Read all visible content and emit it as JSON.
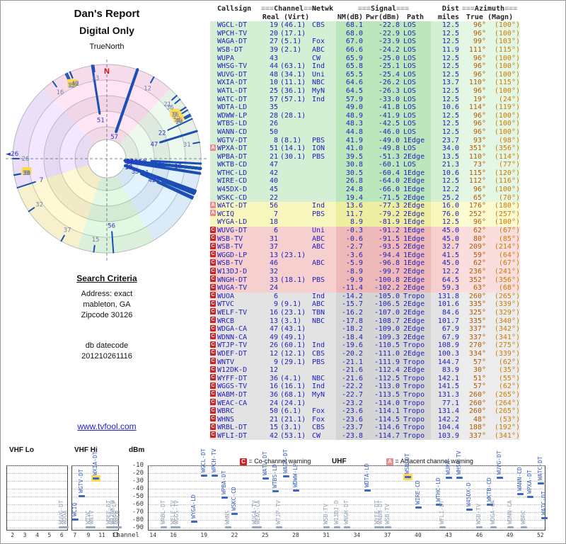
{
  "page": {
    "title1": "Dan's Report",
    "title2": "Digital Only",
    "radar_top_label": "TrueNorth",
    "radar_north": "N",
    "radar_west_label": "26",
    "search_heading": "Search Criteria",
    "search_lines": [
      "Address: exact",
      "mableton, GA",
      "Zipcode 30126"
    ],
    "db_label": "db datecode",
    "db_value": "201210261116",
    "site_link": "www.tvfool.com"
  },
  "table_header": {
    "callsign": "Callsign",
    "channel_group": "Channel",
    "signal_group": "Signal",
    "dist_group": "Dist",
    "azimuth_group": "Azimuth",
    "deco": "≡≡≡",
    "real_virt": "Real (Virt)",
    "netwk": "Netwk",
    "nm": "NM(dB)",
    "pwr": "Pwr(dBm)",
    "path": "Path",
    "miles": "miles",
    "true_magn": "True (Magn)"
  },
  "legend": {
    "co_symbol": "C",
    "co_text": "= Co-channel warning",
    "adj_symbol": "A",
    "adj_text": "= Adjacent channel warning"
  },
  "chart_axes": {
    "dbm_label": "dBm",
    "dbm_ticks": [
      -10,
      -20,
      -30,
      -40,
      -50,
      -60,
      -70,
      -80,
      -90
    ],
    "channel_label": "Channel",
    "panels": [
      {
        "name": "VHF Lo",
        "min": 2,
        "max": 6,
        "ticks": [
          2,
          3,
          4,
          5,
          6
        ]
      },
      {
        "name": "VHF Hi",
        "min": 7,
        "max": 13,
        "ticks": [
          7,
          9,
          11,
          13
        ]
      },
      {
        "name": "UHF",
        "min": 14,
        "max": 52,
        "ticks": [
          14,
          16,
          19,
          22,
          25,
          28,
          31,
          34,
          37,
          40,
          43,
          46,
          49,
          52
        ]
      }
    ]
  },
  "radar": {
    "highlight_channels": [
      6,
      9,
      13
    ],
    "sectors": [
      {
        "from": 318,
        "to": 42,
        "color": "#ffaade"
      },
      {
        "from": 252,
        "to": 318,
        "color": "#d8b4ff"
      },
      {
        "from": 198,
        "to": 252,
        "color": "#ffe97a"
      },
      {
        "from": 150,
        "to": 198,
        "color": "#a6e8a6"
      },
      {
        "from": 96,
        "to": 150,
        "color": "#a6d8ff"
      },
      {
        "from": 42,
        "to": 96,
        "color": "#c6ecc6"
      }
    ]
  },
  "chart_highlight": [
    "WXIA-DT",
    "WSB-DT"
  ],
  "chart_data": {
    "type": "table",
    "description": "TV reception report: stations with real/virtual channel, network, noise margin NM(dB), power Pwr(dBm), propagation path, distance (miles) and azimuth true/magnetic. Same stations are plotted on the azimuth radar (top-left) and the signal strength vs channel plot (bottom). band: g=green strong, y=yellow, p=pink/red, x=gray weak. warn: C=co-channel, A=adjacent channel.",
    "columns": [
      "cs",
      "re",
      "vi",
      "net",
      "nm",
      "pw",
      "pa",
      "mi",
      "az",
      "mag",
      "band",
      "warn"
    ],
    "stations": [
      {
        "cs": "WGCL-DT",
        "re": 19,
        "vi": "(46.1)",
        "net": "CBS",
        "nm": 68.1,
        "pw": -22.8,
        "pa": "LOS",
        "mi": 12.5,
        "az": 96,
        "mag": 100,
        "band": "g",
        "warn": ""
      },
      {
        "cs": "WPCH-TV",
        "re": 20,
        "vi": "(17.1)",
        "net": "",
        "nm": 68.0,
        "pw": -22.9,
        "pa": "LOS",
        "mi": 12.5,
        "az": 96,
        "mag": 100,
        "band": "g",
        "warn": ""
      },
      {
        "cs": "WAGA-DT",
        "re": 27,
        "vi": "(5.1)",
        "net": "Fox",
        "nm": 67.0,
        "pw": -23.9,
        "pa": "LOS",
        "mi": 12.5,
        "az": 99,
        "mag": 103,
        "band": "g",
        "warn": ""
      },
      {
        "cs": "WSB-DT",
        "re": 39,
        "vi": "(2.1)",
        "net": "ABC",
        "nm": 66.6,
        "pw": -24.2,
        "pa": "LOS",
        "mi": 11.9,
        "az": 111,
        "mag": 115,
        "band": "g",
        "warn": ""
      },
      {
        "cs": "WUPA",
        "re": 43,
        "vi": "",
        "net": "CW",
        "nm": 65.9,
        "pw": -25.0,
        "pa": "LOS",
        "mi": 12.5,
        "az": 96,
        "mag": 100,
        "band": "g",
        "warn": ""
      },
      {
        "cs": "WHSG-TV",
        "re": 44,
        "vi": "(63.1)",
        "net": "Ind",
        "nm": 65.8,
        "pw": -25.1,
        "pa": "LOS",
        "mi": 12.5,
        "az": 96,
        "mag": 100,
        "band": "g",
        "warn": ""
      },
      {
        "cs": "WUVG-DT",
        "re": 48,
        "vi": "(34.1)",
        "net": "Uni",
        "nm": 65.5,
        "pw": -25.4,
        "pa": "LOS",
        "mi": 12.5,
        "az": 96,
        "mag": 100,
        "band": "g",
        "warn": ""
      },
      {
        "cs": "WXIA-DT",
        "re": 10,
        "vi": "(11.1)",
        "net": "NBC",
        "nm": 64.6,
        "pw": -26.2,
        "pa": "LOS",
        "mi": 13.7,
        "az": 110,
        "mag": 115,
        "band": "g",
        "warn": ""
      },
      {
        "cs": "WATL-DT",
        "re": 25,
        "vi": "(36.1)",
        "net": "MyN",
        "nm": 64.5,
        "pw": -26.3,
        "pa": "LOS",
        "mi": 12.5,
        "az": 96,
        "mag": 100,
        "band": "g",
        "warn": ""
      },
      {
        "cs": "WATC-DT",
        "re": 57,
        "vi": "(57.1)",
        "net": "Ind",
        "nm": 57.9,
        "pw": -33.0,
        "pa": "LOS",
        "mi": 12.5,
        "az": 19,
        "mag": 24,
        "band": "g",
        "warn": ""
      },
      {
        "cs": "WDTA-LD",
        "re": 35,
        "vi": "",
        "net": "",
        "nm": 49.0,
        "pw": -41.8,
        "pa": "LOS",
        "mi": 10.6,
        "az": 114,
        "mag": 119,
        "band": "g",
        "warn": ""
      },
      {
        "cs": "WDWW-LP",
        "re": 28,
        "vi": "(28.1)",
        "net": "",
        "nm": 48.9,
        "pw": -41.9,
        "pa": "LOS",
        "mi": 12.5,
        "az": 96,
        "mag": 100,
        "band": "g",
        "warn": ""
      },
      {
        "cs": "WTBS-LD",
        "re": 26,
        "vi": "",
        "net": "",
        "nm": 48.3,
        "pw": -42.5,
        "pa": "LOS",
        "mi": 12.5,
        "az": 96,
        "mag": 100,
        "band": "g",
        "warn": ""
      },
      {
        "cs": "WANN-CD",
        "re": 50,
        "vi": "",
        "net": "",
        "nm": 44.8,
        "pw": -46.0,
        "pa": "LOS",
        "mi": 12.5,
        "az": 96,
        "mag": 100,
        "band": "g",
        "warn": ""
      },
      {
        "cs": "WGTV-DT",
        "re": 8,
        "vi": "(8.1)",
        "net": "PBS",
        "nm": 41.9,
        "pw": -49.0,
        "pa": "1Edge",
        "mi": 23.7,
        "az": 93,
        "mag": 98,
        "band": "g",
        "warn": ""
      },
      {
        "cs": "WPXA-DT",
        "re": 51,
        "vi": "(14.1)",
        "net": "ION",
        "nm": 41.0,
        "pw": -49.8,
        "pa": "LOS",
        "mi": 34.0,
        "az": 351,
        "mag": 356,
        "band": "g",
        "warn": "A"
      },
      {
        "cs": "WPBA-DT",
        "re": 21,
        "vi": "(30.1)",
        "net": "PBS",
        "nm": 39.5,
        "pw": -51.3,
        "pa": "2Edge",
        "mi": 13.5,
        "az": 110,
        "mag": 114,
        "band": "g",
        "warn": ""
      },
      {
        "cs": "WKTB-CD",
        "re": 47,
        "vi": "",
        "net": "",
        "nm": 30.8,
        "pw": -60.1,
        "pa": "LOS",
        "mi": 21.3,
        "az": 73,
        "mag": 77,
        "band": "g",
        "warn": ""
      },
      {
        "cs": "WTHC-LD",
        "re": 42,
        "vi": "",
        "net": "",
        "nm": 30.5,
        "pw": -60.4,
        "pa": "1Edge",
        "mi": 10.6,
        "az": 115,
        "mag": 120,
        "band": "g",
        "warn": ""
      },
      {
        "cs": "WIRE-CD",
        "re": 40,
        "vi": "",
        "net": "",
        "nm": 26.8,
        "pw": -64.0,
        "pa": "2Edge",
        "mi": 12.5,
        "az": 112,
        "mag": 116,
        "band": "g",
        "warn": ""
      },
      {
        "cs": "W45DX-D",
        "re": 45,
        "vi": "",
        "net": "",
        "nm": 24.8,
        "pw": -66.0,
        "pa": "1Edge",
        "mi": 12.2,
        "az": 96,
        "mag": 100,
        "band": "g",
        "warn": ""
      },
      {
        "cs": "WSKC-CD",
        "re": 22,
        "vi": "",
        "net": "",
        "nm": 19.4,
        "pw": -71.5,
        "pa": "2Edge",
        "mi": 25.2,
        "az": 65,
        "mag": 70,
        "band": "g",
        "warn": ""
      },
      {
        "cs": "WATC-DT",
        "re": 56,
        "vi": "",
        "net": "Ind",
        "nm": 13.6,
        "pw": -77.3,
        "pa": "2Edge",
        "mi": 16.0,
        "az": 176,
        "mag": 180,
        "band": "y",
        "warn": "A"
      },
      {
        "cs": "WCIQ",
        "re": 7,
        "vi": "",
        "net": "PBS",
        "nm": 11.7,
        "pw": -79.2,
        "pa": "2Edge",
        "mi": 76.0,
        "az": 252,
        "mag": 257,
        "band": "y",
        "warn": "A"
      },
      {
        "cs": "WYGA-LD",
        "re": 18,
        "vi": "",
        "net": "",
        "nm": 8.9,
        "pw": -81.9,
        "pa": "1Edge",
        "mi": 12.5,
        "az": 96,
        "mag": 100,
        "band": "y",
        "warn": ""
      },
      {
        "cs": "WUVG-DT",
        "re": 6,
        "vi": "",
        "net": "Uni",
        "nm": -0.3,
        "pw": -91.2,
        "pa": "1Edge",
        "mi": 45.0,
        "az": 62,
        "mag": 67,
        "band": "p",
        "warn": "C"
      },
      {
        "cs": "WSB-TV",
        "re": 31,
        "vi": "",
        "net": "ABC",
        "nm": -0.6,
        "pw": -91.5,
        "pa": "1Edge",
        "mi": 45.0,
        "az": 80,
        "mag": 85,
        "band": "p",
        "warn": "C"
      },
      {
        "cs": "WSB-TV",
        "re": 37,
        "vi": "",
        "net": "ABC",
        "nm": -2.7,
        "pw": -93.5,
        "pa": "2Edge",
        "mi": 32.7,
        "az": 209,
        "mag": 214,
        "band": "p",
        "warn": "C"
      },
      {
        "cs": "WGGD-LP",
        "re": 13,
        "vi": "(23.1)",
        "net": "",
        "nm": -3.6,
        "pw": -94.4,
        "pa": "1Edge",
        "mi": 41.5,
        "az": 59,
        "mag": 64,
        "band": "p",
        "warn": "C"
      },
      {
        "cs": "WSB-TV",
        "re": 46,
        "vi": "",
        "net": "ABC",
        "nm": -5.9,
        "pw": -96.8,
        "pa": "1Edge",
        "mi": 45.0,
        "az": 62,
        "mag": 67,
        "band": "p",
        "warn": "C"
      },
      {
        "cs": "W13DJ-D",
        "re": 32,
        "vi": "",
        "net": "",
        "nm": -8.9,
        "pw": -99.7,
        "pa": "2Edge",
        "mi": 12.2,
        "az": 236,
        "mag": 241,
        "band": "p",
        "warn": "C"
      },
      {
        "cs": "WNGH-DT",
        "re": 33,
        "vi": "(18.1)",
        "net": "PBS",
        "nm": -9.9,
        "pw": -100.8,
        "pa": "2Edge",
        "mi": 64.5,
        "az": 352,
        "mag": 356,
        "band": "p",
        "warn": "C"
      },
      {
        "cs": "WUGA-TV",
        "re": 24,
        "vi": "",
        "net": "",
        "nm": -11.4,
        "pw": -102.2,
        "pa": "2Edge",
        "mi": 59.3,
        "az": 63,
        "mag": 68,
        "band": "p",
        "warn": "C"
      },
      {
        "cs": "WUOA",
        "re": 6,
        "vi": "",
        "net": "Ind",
        "nm": -14.2,
        "pw": -105.0,
        "pa": "Tropo",
        "mi": 131.8,
        "az": 260,
        "mag": 265,
        "band": "x",
        "warn": "C"
      },
      {
        "cs": "WTVC",
        "re": 9,
        "vi": "(9.1)",
        "net": "ABC",
        "nm": -15.7,
        "pw": -106.5,
        "pa": "2Edge",
        "mi": 101.6,
        "az": 335,
        "mag": 339,
        "band": "x",
        "warn": "C"
      },
      {
        "cs": "WELF-TV",
        "re": 16,
        "vi": "(23.1)",
        "net": "TBN",
        "nm": -16.2,
        "pw": -107.0,
        "pa": "2Edge",
        "mi": 84.6,
        "az": 325,
        "mag": 329,
        "band": "x",
        "warn": "C"
      },
      {
        "cs": "WRCB",
        "re": 13,
        "vi": "(3.1)",
        "net": "NBC",
        "nm": -17.8,
        "pw": -108.7,
        "pa": "2Edge",
        "mi": 101.7,
        "az": 335,
        "mag": 340,
        "band": "x",
        "warn": "C"
      },
      {
        "cs": "WDGA-CA",
        "re": 47,
        "vi": "(43.1)",
        "net": "",
        "nm": -18.2,
        "pw": -109.0,
        "pa": "2Edge",
        "mi": 67.9,
        "az": 337,
        "mag": 342,
        "band": "x",
        "warn": "C"
      },
      {
        "cs": "WDNN-CA",
        "re": 49,
        "vi": "(49.1)",
        "net": "",
        "nm": -18.4,
        "pw": -109.3,
        "pa": "2Edge",
        "mi": 67.9,
        "az": 337,
        "mag": 341,
        "band": "x",
        "warn": "C"
      },
      {
        "cs": "WTJP-TV",
        "re": 26,
        "vi": "(60.1)",
        "net": "Ind",
        "nm": -19.6,
        "pw": -110.5,
        "pa": "Tropo",
        "mi": 108.9,
        "az": 270,
        "mag": 275,
        "band": "x",
        "warn": "C"
      },
      {
        "cs": "WDEF-DT",
        "re": 12,
        "vi": "(12.1)",
        "net": "CBS",
        "nm": -20.2,
        "pw": -111.0,
        "pa": "2Edge",
        "mi": 100.3,
        "az": 334,
        "mag": 339,
        "band": "x",
        "warn": "C"
      },
      {
        "cs": "WNTV",
        "re": 9,
        "vi": "(29.1)",
        "net": "PBS",
        "nm": -21.1,
        "pw": -111.9,
        "pa": "Tropo",
        "mi": 144.7,
        "az": 57,
        "mag": 62,
        "band": "x",
        "warn": "C"
      },
      {
        "cs": "W12DK-D",
        "re": 12,
        "vi": "",
        "net": "",
        "nm": -21.6,
        "pw": -112.4,
        "pa": "2Edge",
        "mi": 83.9,
        "az": 30,
        "mag": 35,
        "band": "x",
        "warn": "C"
      },
      {
        "cs": "WYFF-DT",
        "re": 36,
        "vi": "(4.1)",
        "net": "NBC",
        "nm": -21.6,
        "pw": -112.5,
        "pa": "Tropo",
        "mi": 142.1,
        "az": 51,
        "mag": 55,
        "band": "x",
        "warn": "C"
      },
      {
        "cs": "WGGS-TV",
        "re": 16,
        "vi": "(16.1)",
        "net": "Ind",
        "nm": -22.2,
        "pw": -113.0,
        "pa": "Tropo",
        "mi": 141.5,
        "az": 57,
        "mag": 62,
        "band": "x",
        "warn": "C"
      },
      {
        "cs": "WABM-DT",
        "re": 36,
        "vi": "(68.1)",
        "net": "MyN",
        "nm": -22.7,
        "pw": -113.5,
        "pa": "Tropo",
        "mi": 131.3,
        "az": 260,
        "mag": 265,
        "band": "x",
        "warn": "C"
      },
      {
        "cs": "WEAC-CA",
        "re": 24,
        "vi": "(24.1)",
        "net": "",
        "nm": -23.2,
        "pw": -114.0,
        "pa": "Tropo",
        "mi": 77.1,
        "az": 260,
        "mag": 264,
        "band": "x",
        "warn": "C"
      },
      {
        "cs": "WBRC",
        "re": 50,
        "vi": "(6.1)",
        "net": "Fox",
        "nm": -23.6,
        "pw": -114.1,
        "pa": "Tropo",
        "mi": 131.4,
        "az": 260,
        "mag": 265,
        "band": "x",
        "warn": "C"
      },
      {
        "cs": "WHNS",
        "re": 21,
        "vi": "(21.1)",
        "net": "Fox",
        "nm": -23.6,
        "pw": -114.5,
        "pa": "Tropo",
        "mi": 142.2,
        "az": 48,
        "mag": 53,
        "band": "x",
        "warn": "C"
      },
      {
        "cs": "WRBL-DT",
        "re": 15,
        "vi": "(3.1)",
        "net": "CBS",
        "nm": -23.7,
        "pw": -114.6,
        "pa": "Tropo",
        "mi": 104.4,
        "az": 188,
        "mag": 192,
        "band": "x",
        "warn": "C"
      },
      {
        "cs": "WFLI-DT",
        "re": 42,
        "vi": "(53.1)",
        "net": "CW",
        "nm": -23.8,
        "pw": -114.7,
        "pa": "Tropo",
        "mi": 103.9,
        "az": 337,
        "mag": 341,
        "band": "x",
        "warn": "C"
      }
    ]
  }
}
